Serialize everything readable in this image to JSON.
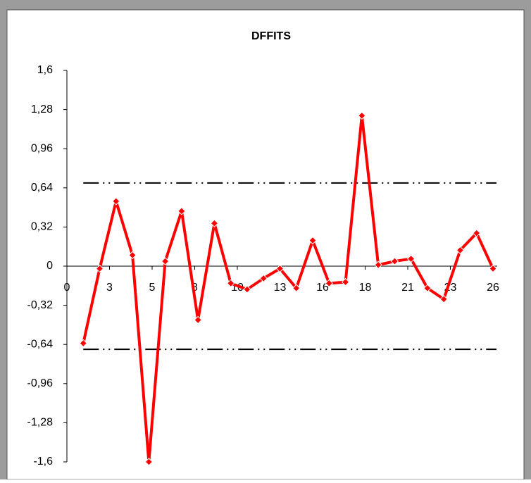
{
  "chart_data": {
    "type": "line",
    "title": "DFFITS",
    "x": [
      1,
      2,
      3,
      4,
      5,
      6,
      7,
      8,
      9,
      10,
      11,
      12,
      13,
      14,
      15,
      16,
      17,
      18,
      19,
      20,
      21,
      22,
      23,
      24,
      25,
      26
    ],
    "series": [
      {
        "color": "#ff0000",
        "values": [
          -0.63,
          -0.02,
          0.53,
          0.09,
          -1.6,
          0.04,
          0.45,
          -0.44,
          0.35,
          -0.14,
          -0.19,
          -0.1,
          -0.02,
          -0.18,
          0.21,
          -0.14,
          -0.13,
          1.23,
          0.01,
          0.04,
          0.06,
          -0.18,
          -0.27,
          0.13,
          0.27,
          -0.02
        ]
      }
    ],
    "reference_lines": [
      0.68,
      -0.68
    ],
    "xlim": [
      0,
      26
    ],
    "xticks": [
      0,
      {
        "value": 2.6,
        "label": "3"
      },
      {
        "value": 5.2,
        "label": "5"
      },
      {
        "value": 7.8,
        "label": "8"
      },
      {
        "value": 10.4,
        "label": "10"
      },
      13,
      {
        "value": 15.6,
        "label": "16"
      },
      {
        "value": 18.2,
        "label": "18"
      },
      {
        "value": 20.8,
        "label": "21"
      },
      {
        "value": 23.4,
        "label": "23"
      },
      26
    ],
    "ylim": [
      -1.6,
      1.6
    ],
    "yticks": [
      {
        "value": -1.6,
        "label": "-1,6"
      },
      {
        "value": -1.28,
        "label": "-1,28"
      },
      {
        "value": -0.96,
        "label": "-0,96"
      },
      {
        "value": -0.64,
        "label": "-0,64"
      },
      {
        "value": -0.32,
        "label": "-0,32"
      },
      0,
      {
        "value": 0.32,
        "label": "0,32"
      },
      {
        "value": 0.64,
        "label": "0,64"
      },
      {
        "value": 0.96,
        "label": "0,96"
      },
      {
        "value": 1.28,
        "label": "1,28"
      },
      {
        "value": 1.6,
        "label": "1,6"
      }
    ],
    "grid": false
  }
}
